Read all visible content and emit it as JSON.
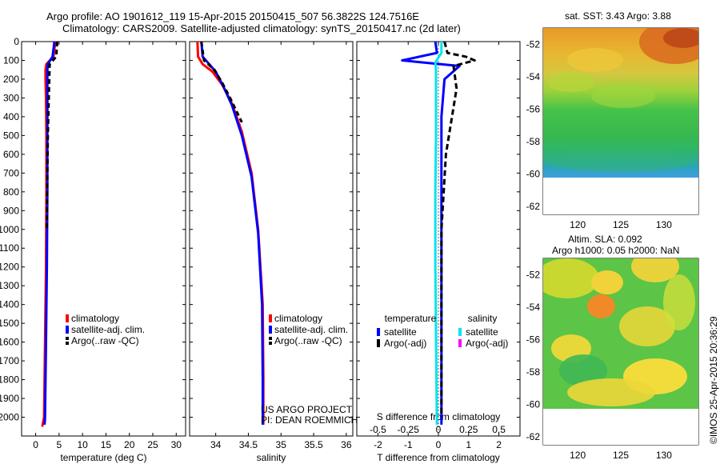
{
  "header": {
    "title_line1": "Argo profile: AO 1901612_119 15-Apr-2015 20150415_507 56.3822S 124.7516E",
    "title_line2": "Climatology: CARS2009. Satellite-adjusted climatology: synTS_20150417.nc (2d later)"
  },
  "colors": {
    "climatology": "#ff0000",
    "satellite_adj": "#0000ff",
    "argo": "#000000",
    "satellite_s": "#00e5ee",
    "argo_s": "#ff00ff"
  },
  "chart_data": [
    {
      "type": "line",
      "xlabel": "temperature (deg C)",
      "ylabel": "",
      "xlim": [
        -3,
        32
      ],
      "ylim": [
        2100,
        0
      ],
      "xticks": [
        0,
        5,
        10,
        15,
        20,
        25,
        30
      ],
      "yticks": [
        0,
        100,
        200,
        300,
        400,
        500,
        600,
        700,
        800,
        900,
        1000,
        1100,
        1200,
        1300,
        1400,
        1500,
        1600,
        1700,
        1800,
        1900,
        2000
      ],
      "legend": [
        "climatology",
        "satellite-adj. clim.",
        "Argo(..raw -QC)"
      ],
      "series": [
        {
          "name": "climatology",
          "x": [
            4.2,
            3.8,
            2.3,
            2.1,
            2.1,
            2.2,
            2.3,
            2.3,
            2.2,
            2.0,
            1.8,
            1.4
          ],
          "y": [
            0,
            80,
            120,
            150,
            200,
            300,
            500,
            800,
            1200,
            1600,
            2000,
            2050
          ]
        },
        {
          "name": "satellite-adj. clim.",
          "x": [
            4.0,
            3.6,
            2.6,
            2.5,
            2.5,
            2.5,
            2.5,
            2.5,
            2.4,
            2.2,
            2.0,
            1.9
          ],
          "y": [
            0,
            80,
            120,
            150,
            200,
            300,
            500,
            800,
            1200,
            1600,
            2000,
            2040
          ]
        },
        {
          "name": "Argo(..raw -QC)",
          "x": [
            4.6,
            4.4,
            3.0,
            2.9,
            2.8,
            2.7,
            2.6,
            2.5,
            2.4
          ],
          "y": [
            0,
            80,
            120,
            200,
            300,
            400,
            500,
            700,
            1000
          ]
        }
      ]
    },
    {
      "type": "line",
      "xlabel": "salinity",
      "ylabel": "",
      "xlim": [
        33.6,
        36.1
      ],
      "ylim": [
        2100,
        0
      ],
      "xticks": [
        34,
        34.5,
        35,
        35.5,
        36
      ],
      "legend": [
        "climatology",
        "satellite-adj. clim.",
        "Argo(..raw -QC)"
      ],
      "annotation": [
        "US ARGO PROJECT",
        "PI: DEAN ROEMMICH"
      ],
      "series": [
        {
          "name": "climatology",
          "x": [
            33.72,
            33.73,
            33.8,
            33.95,
            34.1,
            34.25,
            34.4,
            34.55,
            34.65,
            34.72,
            34.73,
            34.73
          ],
          "y": [
            0,
            80,
            120,
            160,
            230,
            330,
            480,
            700,
            1000,
            1400,
            1800,
            2040
          ]
        },
        {
          "name": "satellite-adj. clim.",
          "x": [
            33.78,
            33.8,
            33.9,
            34.0,
            34.12,
            34.25,
            34.4,
            34.55,
            34.65,
            34.71,
            34.72,
            34.72
          ],
          "y": [
            0,
            80,
            120,
            160,
            240,
            340,
            500,
            720,
            1020,
            1400,
            1800,
            2040
          ]
        },
        {
          "name": "Argo(..raw -QC)",
          "x": [
            33.78,
            33.82,
            33.98,
            34.1,
            34.22,
            34.4
          ],
          "y": [
            0,
            100,
            150,
            220,
            300,
            430
          ]
        }
      ]
    },
    {
      "type": "line",
      "xlabel": "T difference from climatology",
      "x2label": "S difference from climatology",
      "xlim": [
        -2.7,
        2.7
      ],
      "x2lim": [
        -0.675,
        0.675
      ],
      "ylim": [
        2100,
        0
      ],
      "xticks": [
        -2,
        -1,
        0,
        1,
        2
      ],
      "x2ticks": [
        "-0.5",
        "-0.25",
        "0",
        "0.25",
        "0.5"
      ],
      "legend_headers": [
        "temperature",
        "salinity"
      ],
      "legend": [
        "satellite",
        "Argo(-adj)",
        "satellite",
        "Argo(-adj)"
      ],
      "series": [
        {
          "name": "satellite",
          "group": "temperature",
          "x": [
            -0.1,
            -0.05,
            -1.2,
            -0.6,
            0.7,
            0.2,
            0.1,
            0.1,
            0.1,
            0.1,
            0.1
          ],
          "y": [
            0,
            60,
            100,
            110,
            130,
            200,
            400,
            800,
            1200,
            1600,
            2040
          ]
        },
        {
          "name": "Argo(-adj)",
          "group": "temperature",
          "x": [
            0.2,
            0.3,
            0.9,
            1.2,
            0.5,
            0.6,
            0.25,
            0.1,
            0.1
          ],
          "y": [
            0,
            60,
            80,
            100,
            130,
            250,
            600,
            1000,
            2000
          ]
        },
        {
          "name": "satellite",
          "group": "salinity",
          "x": [
            0.025,
            0.025,
            -0.025,
            -0.02,
            -0.02,
            -0.02,
            -0.025,
            -0.025,
            -0.0125
          ],
          "y": [
            0,
            60,
            110,
            150,
            300,
            500,
            800,
            1200,
            2040
          ]
        },
        {
          "name": "Argo(-adj)",
          "group": "salinity",
          "x": [],
          "y": []
        }
      ]
    },
    {
      "type": "heatmap",
      "title": "sat. SST: 3.43 Argo: 3.88",
      "xticks": [
        120,
        125,
        130
      ],
      "yticks": [
        -52,
        -54,
        -56,
        -58,
        -60,
        -62
      ]
    },
    {
      "type": "heatmap",
      "title_line1": "Altim. SLA: 0.092",
      "title_line2": "Argo h1000: 0.05 h2000: NaN",
      "xticks": [
        120,
        125,
        130
      ],
      "yticks": [
        -52,
        -54,
        -56,
        -58,
        -60,
        -62
      ]
    }
  ],
  "credit": "©IMOS 25-Apr-2015 20:36:29"
}
